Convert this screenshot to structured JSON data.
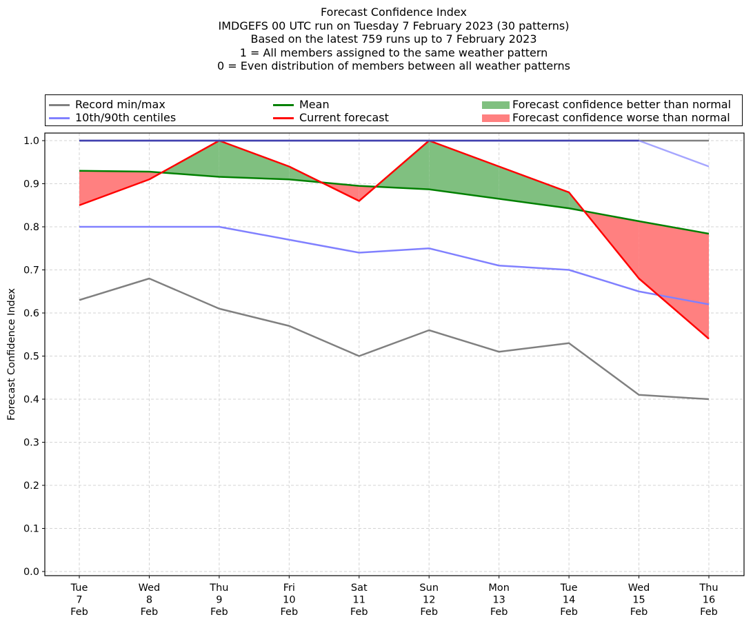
{
  "chart_data": {
    "type": "line",
    "title": [
      "Forecast Confidence Index",
      "IMDGEFS 00 UTC run on Tuesday 7 February 2023 (30 patterns)",
      "Based on the latest 759 runs up to 7 February 2023",
      "1 = All members assigned to the same weather pattern",
      "0 = Even distribution of members between all weather patterns"
    ],
    "xlabel": "",
    "ylabel": "Forecast Confidence Index",
    "ylim": [
      -0.01,
      1.01
    ],
    "yticks": [
      "0.0",
      "0.1",
      "0.2",
      "0.3",
      "0.4",
      "0.5",
      "0.6",
      "0.7",
      "0.8",
      "0.9",
      "1.0"
    ],
    "grid": true,
    "legend_position": "top",
    "categories": [
      [
        "Tue",
        "7",
        "Feb"
      ],
      [
        "Wed",
        "8",
        "Feb"
      ],
      [
        "Thu",
        "9",
        "Feb"
      ],
      [
        "Fri",
        "10",
        "Feb"
      ],
      [
        "Sat",
        "11",
        "Feb"
      ],
      [
        "Sun",
        "12",
        "Feb"
      ],
      [
        "Mon",
        "13",
        "Feb"
      ],
      [
        "Tue",
        "14",
        "Feb"
      ],
      [
        "Wed",
        "15",
        "Feb"
      ],
      [
        "Thu",
        "16",
        "Feb"
      ]
    ],
    "series": [
      {
        "name": "Record min",
        "legend": "Record min/max",
        "color": "#808080",
        "values": [
          0.63,
          0.68,
          0.61,
          0.57,
          0.5,
          0.56,
          0.51,
          0.53,
          0.41,
          0.4
        ]
      },
      {
        "name": "Record max",
        "legend": "Record min/max",
        "color": "#808080",
        "values": [
          1.0,
          1.0,
          1.0,
          1.0,
          1.0,
          1.0,
          1.0,
          1.0,
          1.0,
          1.0
        ]
      },
      {
        "name": "10th centile",
        "legend": "10th/90th centiles",
        "color": "#8080ff",
        "values": [
          0.8,
          0.8,
          0.8,
          0.77,
          0.74,
          0.75,
          0.71,
          0.7,
          0.65,
          0.62
        ]
      },
      {
        "name": "90th centile",
        "legend": "10th/90th centiles",
        "color": "#8080ff",
        "values": [
          1.0,
          1.0,
          1.0,
          1.0,
          1.0,
          1.0,
          1.0,
          1.0,
          1.0,
          0.94
        ]
      },
      {
        "name": "Mean",
        "legend": "Mean",
        "color": "#008000",
        "values": [
          0.93,
          0.928,
          0.916,
          0.91,
          0.895,
          0.887,
          0.865,
          0.843,
          0.813,
          0.784
        ]
      },
      {
        "name": "Current forecast",
        "legend": "Current forecast",
        "color": "#ff0000",
        "values": [
          0.85,
          0.91,
          1.0,
          0.94,
          0.86,
          1.0,
          0.94,
          0.88,
          0.68,
          0.54
        ]
      }
    ],
    "fills": {
      "better": {
        "label": "Forecast confidence better than normal",
        "color": "#80c080"
      },
      "worse": {
        "label": "Forecast confidence worse than normal",
        "color": "#ff8080"
      }
    }
  },
  "legend": {
    "record": "Record min/max",
    "centiles": "10th/90th centiles",
    "mean": "Mean",
    "current": "Current forecast",
    "better": "Forecast confidence better than normal",
    "worse": "Forecast confidence worse than normal"
  }
}
